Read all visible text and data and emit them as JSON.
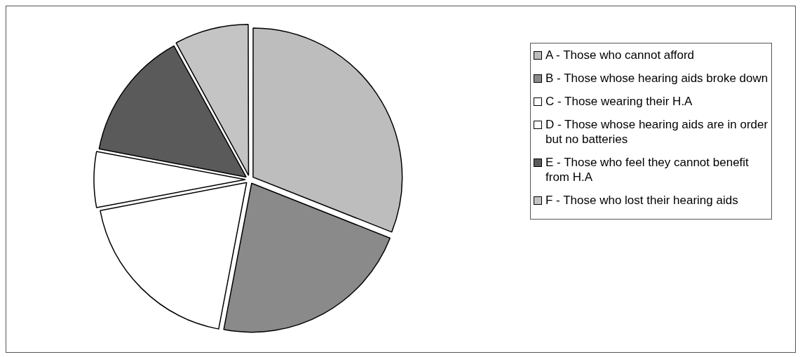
{
  "chart_data": {
    "type": "pie",
    "legend": "right",
    "categories": [
      "A - Those who cannot afford",
      "B - Those whose  hearing aids broke down",
      "C - Those wearing their H.A",
      "D - Those whose hearing aids are in order but no batteries",
      "E - Those who feel they cannot benefit from H.A",
      "F - Those who lost their hearing aids"
    ],
    "values": [
      31,
      22,
      19,
      6,
      14,
      8
    ],
    "colors": [
      "#bdbdbd",
      "#8a8a8a",
      "#ffffff",
      "#ffffff",
      "#5a5a5a",
      "#c4c4c4"
    ]
  }
}
